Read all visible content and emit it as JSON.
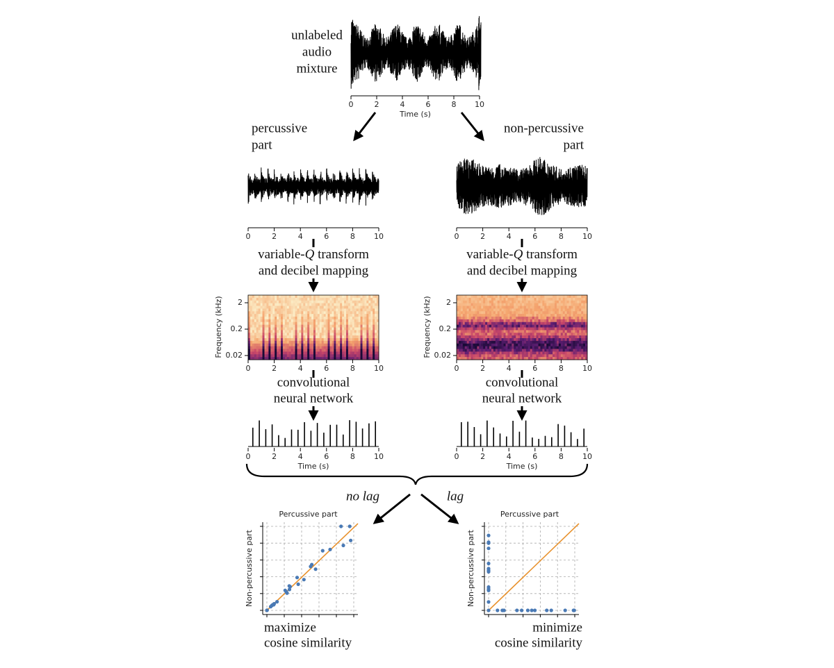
{
  "mixture": {
    "label": [
      "unlabeled",
      "audio",
      "mixture"
    ],
    "xticks": [
      "0",
      "2",
      "4",
      "6",
      "8",
      "10"
    ],
    "xlabel": "Time (s)"
  },
  "branches": [
    {
      "label": [
        "percussive",
        "part"
      ],
      "wave_xticks": [
        "0",
        "2",
        "4",
        "6",
        "8",
        "10"
      ],
      "transform": {
        "first": [
          "variable-",
          "Q",
          " transform"
        ],
        "second": "and decibel mapping"
      },
      "spectrogram": {
        "ylabel": "Frequency (kHz)",
        "yticks": [
          "2",
          "0.2",
          "0.02"
        ],
        "xticks": [
          "0",
          "2",
          "4",
          "6",
          "8",
          "10"
        ]
      },
      "network": [
        "convolutional",
        "neural network"
      ],
      "activations": {
        "xticks": [
          "0",
          "2",
          "4",
          "6",
          "8",
          "10"
        ],
        "xlabel": "Time (s)"
      }
    },
    {
      "label": [
        "non-percussive",
        "part"
      ],
      "wave_xticks": [
        "0",
        "2",
        "4",
        "6",
        "8",
        "10"
      ],
      "transform": {
        "first": [
          "variable-",
          "Q",
          " transform"
        ],
        "second": "and decibel mapping"
      },
      "spectrogram": {
        "ylabel": "Frequency (kHz)",
        "yticks": [
          "2",
          "0.2",
          "0.02"
        ],
        "xticks": [
          "0",
          "2",
          "4",
          "6",
          "8",
          "10"
        ]
      },
      "network": [
        "convolutional",
        "neural network"
      ],
      "activations": {
        "xticks": [
          "0",
          "2",
          "4",
          "6",
          "8",
          "10"
        ],
        "xlabel": "Time (s)"
      }
    }
  ],
  "comparisons": [
    {
      "lag_label": "no lag",
      "title": "Percussive part",
      "ylabel": "Non-percussive part",
      "objective": [
        "maximize",
        "cosine similarity"
      ]
    },
    {
      "lag_label": "lag",
      "title": "Percussive part",
      "ylabel": "Non-percussive part",
      "objective": [
        "minimize",
        "cosine similarity"
      ]
    }
  ]
}
